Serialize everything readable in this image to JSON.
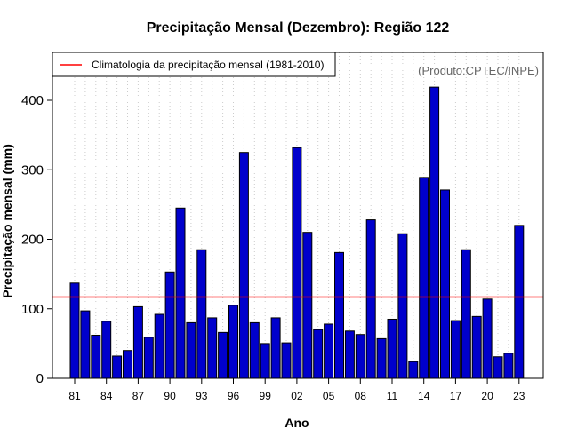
{
  "chart_data": {
    "type": "bar",
    "title": "Precipitação Mensal (Dezembro): Região 122",
    "xlabel": "Ano",
    "ylabel": "Precipitação mensal (mm)",
    "ylim": [
      0,
      450
    ],
    "y_ticks": [
      0,
      100,
      200,
      300,
      400
    ],
    "years": [
      1981,
      1982,
      1983,
      1984,
      1985,
      1986,
      1987,
      1988,
      1989,
      1990,
      1991,
      1992,
      1993,
      1994,
      1995,
      1996,
      1997,
      1998,
      1999,
      2000,
      2001,
      2002,
      2003,
      2004,
      2005,
      2006,
      2007,
      2008,
      2009,
      2010,
      2011,
      2012,
      2013,
      2014,
      2015,
      2016,
      2017,
      2018,
      2019,
      2020,
      2021,
      2022,
      2023
    ],
    "x_tick_labels": [
      "81",
      "84",
      "87",
      "90",
      "93",
      "96",
      "99",
      "02",
      "05",
      "08",
      "11",
      "14",
      "17",
      "20",
      "23"
    ],
    "x_tick_years": [
      1981,
      1984,
      1987,
      1990,
      1993,
      1996,
      1999,
      2002,
      2005,
      2008,
      2011,
      2014,
      2017,
      2020,
      2023
    ],
    "values": [
      137,
      97,
      62,
      82,
      32,
      40,
      103,
      59,
      92,
      153,
      245,
      80,
      185,
      87,
      66,
      105,
      325,
      80,
      50,
      87,
      51,
      332,
      210,
      70,
      78,
      181,
      68,
      63,
      228,
      57,
      85,
      208,
      24,
      289,
      419,
      271,
      83,
      185,
      89,
      114,
      31,
      36,
      220
    ],
    "climatology": 117,
    "bar_color": "#0000CC",
    "climatology_color": "#FF0000",
    "legend": {
      "entries": [
        "Climatologia da precipitação mensal (1981-2010)"
      ],
      "placement": "top-left"
    },
    "credit": "(Produto:CPTEC/INPE)",
    "grid": "vertical-dotted"
  }
}
